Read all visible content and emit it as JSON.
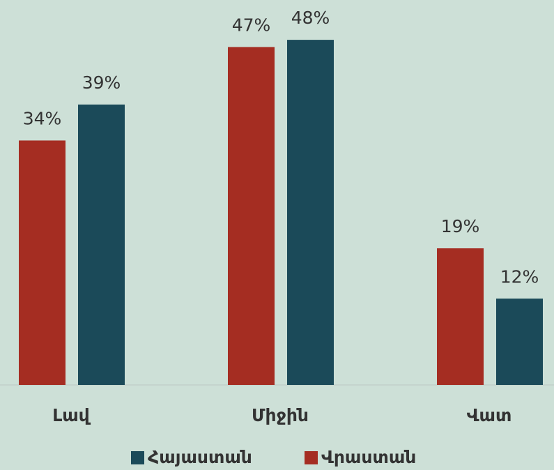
{
  "chart_data": {
    "type": "bar",
    "categories": [
      "Լավ",
      "Միջին",
      "Վատ"
    ],
    "series": [
      {
        "name": "Հայաստան",
        "color": "#1b4a59",
        "values": [
          39,
          48,
          12
        ],
        "value_labels": [
          "39%",
          "48%",
          "12%"
        ]
      },
      {
        "name": "Վրաստան",
        "color": "#a52d22",
        "values": [
          34,
          47,
          19
        ],
        "value_labels": [
          "34%",
          "47%",
          "19%"
        ]
      }
    ]
  }
}
